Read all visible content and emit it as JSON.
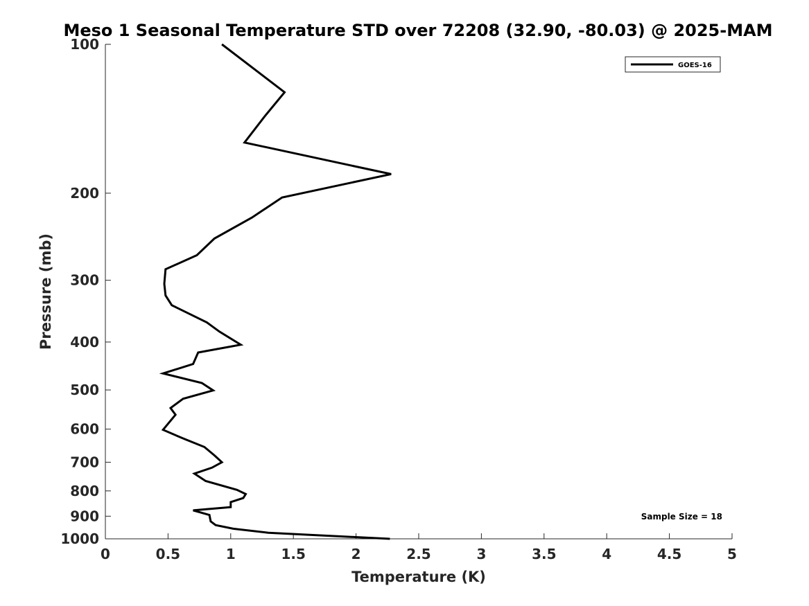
{
  "chart_data": {
    "type": "line",
    "title": "Meso 1 Seasonal Temperature STD over 72208 (32.90, -80.03) @ 2025-MAM",
    "xlabel": "Temperature (K)",
    "ylabel": "Pressure (mb)",
    "xlim": [
      0,
      5
    ],
    "ylim": [
      100,
      1000
    ],
    "y_scale": "log",
    "y_reversed": true,
    "x_ticks": [
      0,
      0.5,
      1,
      1.5,
      2,
      2.5,
      3,
      3.5,
      4,
      4.5,
      5
    ],
    "x_tick_labels": [
      "0",
      "0.5",
      "1",
      "1.5",
      "2",
      "2.5",
      "3",
      "3.5",
      "4",
      "4.5",
      "5"
    ],
    "y_ticks": [
      100,
      200,
      300,
      400,
      500,
      600,
      700,
      800,
      900,
      1000
    ],
    "y_tick_labels": [
      "100",
      "200",
      "300",
      "400",
      "500",
      "600",
      "700",
      "800",
      "900",
      "1000"
    ],
    "grid": false,
    "legend_position": "top-right",
    "series": [
      {
        "name": "GOES-16",
        "color": "#000000",
        "x": [
          0.93,
          1.43,
          1.27,
          1.11,
          2.28,
          1.41,
          1.17,
          0.87,
          0.73,
          0.48,
          0.47,
          0.48,
          0.53,
          0.81,
          0.91,
          1.08,
          0.74,
          0.7,
          0.46,
          0.77,
          0.86,
          0.62,
          0.52,
          0.56,
          0.46,
          0.61,
          0.79,
          0.87,
          0.93,
          0.85,
          0.71,
          0.8,
          1.05,
          1.12,
          1.1,
          1.0,
          1.0,
          0.7,
          0.83,
          0.84,
          0.88,
          1.02,
          1.3,
          2.27
        ],
        "y": [
          100,
          125,
          140,
          158,
          183,
          204,
          224,
          247,
          267,
          285,
          305,
          322,
          337,
          365,
          381,
          405,
          420,
          443,
          463,
          484,
          501,
          521,
          544,
          561,
          602,
          625,
          652,
          678,
          700,
          718,
          738,
          764,
          796,
          812,
          827,
          843,
          863,
          876,
          895,
          922,
          938,
          954,
          972,
          1000
        ]
      }
    ],
    "annotations": [
      {
        "text": "Sample Size = 18",
        "position": "bottom-right"
      }
    ]
  }
}
